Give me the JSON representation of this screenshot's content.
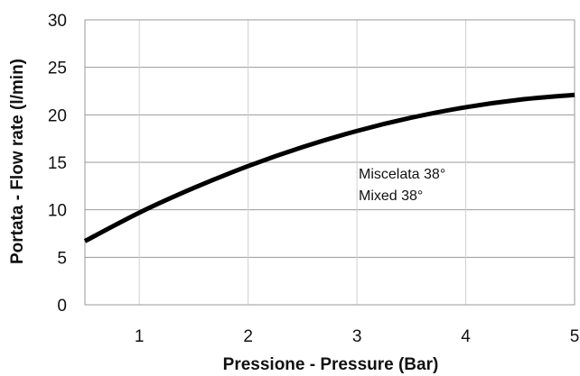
{
  "chart_data": {
    "type": "line",
    "xlabel": "Pressione - Pressure (Bar)",
    "ylabel": "Portata - Flow rate (l/min)",
    "xlim": [
      0.5,
      5
    ],
    "ylim": [
      0,
      30
    ],
    "x_ticks": [
      1,
      2,
      3,
      4,
      5
    ],
    "y_ticks": [
      0,
      5,
      10,
      15,
      20,
      25,
      30
    ],
    "grid": true,
    "series": [
      {
        "x": [
          0.5,
          1.0,
          1.5,
          2.0,
          2.5,
          3.0,
          3.5,
          4.0,
          4.5,
          5.0
        ],
        "y": [
          6.7,
          9.7,
          12.3,
          14.6,
          16.6,
          18.3,
          19.7,
          20.8,
          21.6,
          22.1
        ],
        "color": "#000000"
      }
    ],
    "annotations": [
      "Miscelata 38°",
      "Mixed 38°"
    ]
  }
}
